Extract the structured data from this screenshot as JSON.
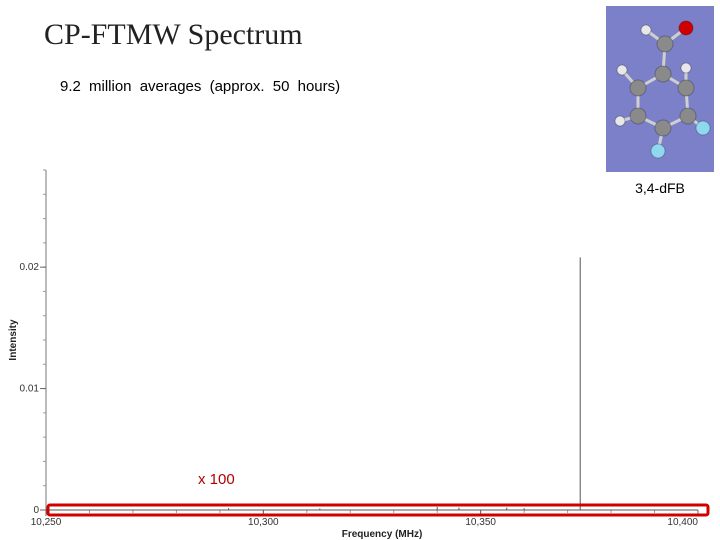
{
  "slide": {
    "title": "CP-FTMW Spectrum",
    "subtitle": "9.2 million averages (approx. 50 hours)",
    "molecule_label": "3,4-dFB"
  },
  "colors": {
    "molecule_background": "#7b80c8",
    "carbon": "#8a8a8a",
    "hydrogen": "#e8e8e8",
    "oxygen": "#d00000",
    "fluorine": "#8fd8ef",
    "highlight": "#d00000",
    "trace": "#555555"
  },
  "chart_data": {
    "type": "line",
    "xlabel": "Frequency (MHz)",
    "ylabel": "Intensity",
    "xlim": [
      10250,
      10400
    ],
    "ylim": [
      0,
      0.028
    ],
    "xticks": [
      "10,250",
      "10,300",
      "10,350",
      "10,400"
    ],
    "xtick_values": [
      10250,
      10300,
      10350,
      10400
    ],
    "yticks": [
      "0",
      "0.01",
      "0.02"
    ],
    "ytick_values": [
      0,
      0.01,
      0.02
    ],
    "grid": false,
    "peaks": [
      {
        "x": 10372.9,
        "y": 0.0208
      },
      {
        "x": 10292.0,
        "y": 0.00015
      },
      {
        "x": 10313.0,
        "y": 0.0001
      },
      {
        "x": 10340.0,
        "y": 0.00025
      },
      {
        "x": 10345.0,
        "y": 0.0002
      },
      {
        "x": 10356.0,
        "y": 0.0002
      },
      {
        "x": 10360.0,
        "y": 0.00015
      }
    ],
    "annotation": "x 100"
  }
}
